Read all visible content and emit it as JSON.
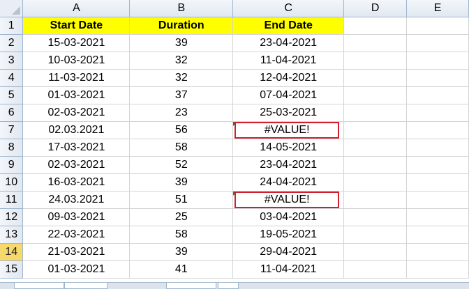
{
  "columns": [
    "A",
    "B",
    "C",
    "D",
    "E"
  ],
  "header_row": {
    "row_number": "1",
    "start_date": "Start Date",
    "duration": "Duration",
    "end_date": "End Date"
  },
  "rows": [
    {
      "n": "2",
      "a": "15-03-2021",
      "b": "39",
      "c": "23-04-2021"
    },
    {
      "n": "3",
      "a": "10-03-2021",
      "b": "32",
      "c": "11-04-2021"
    },
    {
      "n": "4",
      "a": "11-03-2021",
      "b": "32",
      "c": "12-04-2021"
    },
    {
      "n": "5",
      "a": "01-03-2021",
      "b": "37",
      "c": "07-04-2021"
    },
    {
      "n": "6",
      "a": "02-03-2021",
      "b": "23",
      "c": "25-03-2021"
    },
    {
      "n": "7",
      "a": "02.03.2021",
      "b": "56",
      "c": "#VALUE!",
      "error": true
    },
    {
      "n": "8",
      "a": "17-03-2021",
      "b": "58",
      "c": "14-05-2021"
    },
    {
      "n": "9",
      "a": "02-03-2021",
      "b": "52",
      "c": "23-04-2021"
    },
    {
      "n": "10",
      "a": "16-03-2021",
      "b": "39",
      "c": "24-04-2021"
    },
    {
      "n": "11",
      "a": "24.03.2021",
      "b": "51",
      "c": "#VALUE!",
      "error": true
    },
    {
      "n": "12",
      "a": "09-03-2021",
      "b": "25",
      "c": "03-04-2021"
    },
    {
      "n": "13",
      "a": "22-03-2021",
      "b": "58",
      "c": "19-05-2021"
    },
    {
      "n": "14",
      "a": "21-03-2021",
      "b": "39",
      "c": "29-04-2021",
      "active": true
    },
    {
      "n": "15",
      "a": "01-03-2021",
      "b": "41",
      "c": "11-04-2021"
    }
  ],
  "colors": {
    "header_fill": "#ffff00",
    "error_outline": "#d0202e",
    "active_row_header": "#f7d86a"
  }
}
